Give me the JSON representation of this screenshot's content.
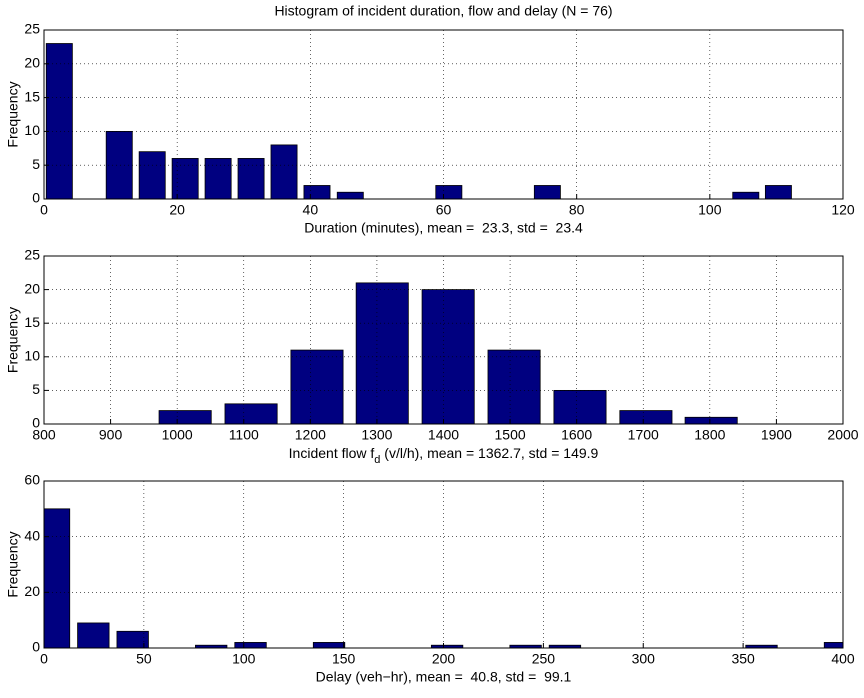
{
  "chart_data": [
    {
      "type": "bar",
      "title": "Histogram of incident duration, flow and delay (N = 76)",
      "xlabel": "Duration (minutes), mean =  23.3, std =  23.4",
      "ylabel": "Frequency",
      "x": [
        2.3,
        11.3,
        16.25,
        21.2,
        26.15,
        31.1,
        36.05,
        41,
        46,
        60.8,
        75.6,
        105.4,
        110.3
      ],
      "values": [
        23,
        10,
        7,
        6,
        6,
        6,
        8,
        2,
        1,
        2,
        2,
        1,
        2
      ],
      "color": "#000080",
      "xlim": [
        0,
        120
      ],
      "xticks": [
        0,
        20,
        40,
        60,
        80,
        100,
        120
      ],
      "ylim": [
        0,
        25
      ],
      "yticks": [
        0,
        5,
        10,
        15,
        20,
        25
      ],
      "grid": true
    },
    {
      "type": "bar",
      "xlabel": [
        "Incident flow f",
        "d",
        " (v/l/h), mean = 1362.7, std = 149.9"
      ],
      "ylabel": "Frequency",
      "x": [
        1012,
        1111,
        1210,
        1308,
        1407,
        1506,
        1605,
        1704,
        1802
      ],
      "values": [
        2,
        3,
        11,
        21,
        20,
        11,
        5,
        2,
        1
      ],
      "color": "#000080",
      "xlim": [
        800,
        2000
      ],
      "xticks": [
        800,
        900,
        1000,
        1100,
        1200,
        1300,
        1400,
        1500,
        1600,
        1700,
        1800,
        1900,
        2000
      ],
      "ylim": [
        0,
        25
      ],
      "yticks": [
        0,
        5,
        10,
        15,
        20,
        25
      ],
      "grid": true
    },
    {
      "type": "bar",
      "xlabel": "Delay (veh−hr), mean =  40.8, std =  99.1",
      "ylabel": "Frequency",
      "x": [
        5,
        24.7,
        44.4,
        83.7,
        103.4,
        142.7,
        201.8,
        241.1,
        260.8,
        359.2,
        398.5
      ],
      "values": [
        50,
        9,
        6,
        1,
        2,
        2,
        1,
        1,
        1,
        1,
        2
      ],
      "color": "#000080",
      "xlim": [
        0,
        400
      ],
      "xticks": [
        0,
        50,
        100,
        150,
        200,
        250,
        300,
        350,
        400
      ],
      "ylim": [
        0,
        60
      ],
      "yticks": [
        0,
        20,
        40,
        60
      ],
      "grid": true
    }
  ]
}
